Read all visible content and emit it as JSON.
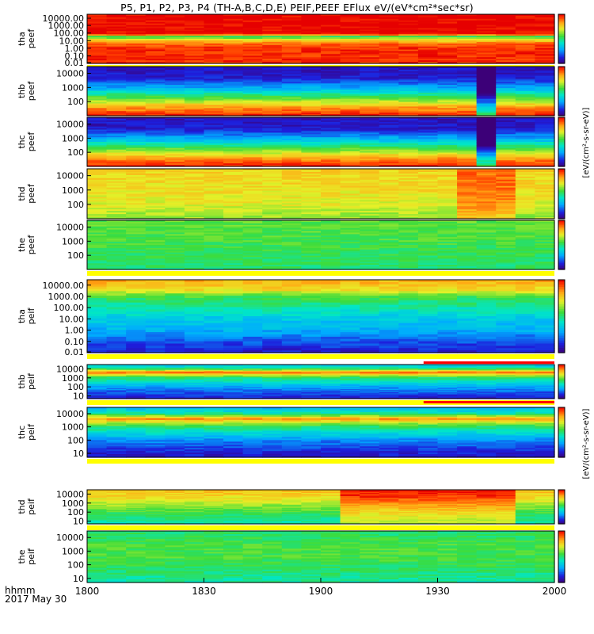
{
  "title": "P5, P1, P2, P3, P4 (TH-A,B,C,D,E) PEIF,PEEF EFlux eV/(eV*cm²*sec*sr)",
  "footer": {
    "time_label": "hhmm",
    "date_label": "2017 May 30"
  },
  "chart_data": [
    {
      "type": "heatmap",
      "probe_label": [
        "tha",
        "peef"
      ],
      "ytick_labels": [
        "10000.00",
        "1000.00",
        "100.00",
        "10.00",
        "1.00",
        "0.10",
        "0.01"
      ],
      "yrange": [
        0.01,
        30000
      ],
      "yscale": "log",
      "colorbar": {
        "ticks": [],
        "label": ""
      },
      "profile": [
        [
          0,
          0.95
        ],
        [
          0.5,
          0.9
        ],
        [
          0.8,
          0.82
        ],
        [
          1.1,
          0.72
        ],
        [
          1.3,
          0.62
        ],
        [
          1.6,
          0.52
        ],
        [
          1.8,
          1.0
        ],
        [
          3.2,
          1.0
        ],
        [
          4.0,
          1.0
        ]
      ],
      "xvar": [],
      "gap_below": 0.12
    },
    {
      "type": "heatmap",
      "probe_label": [
        "thb",
        "peef"
      ],
      "ytick_labels": [
        "10000",
        "1000",
        "100"
      ],
      "yrange": [
        10,
        30000
      ],
      "yscale": "log",
      "colorbar": {
        "ticks": [],
        "label": ""
      },
      "profile": [
        [
          1.0,
          0.98
        ],
        [
          1.3,
          0.9
        ],
        [
          1.6,
          0.82
        ],
        [
          1.9,
          0.7
        ],
        [
          2.3,
          0.55
        ],
        [
          2.8,
          0.35
        ],
        [
          3.3,
          0.2
        ],
        [
          3.7,
          0.1
        ],
        [
          4.5,
          0.08
        ]
      ],
      "xvar": [
        [
          0.83,
          0.86,
          -0.45
        ]
      ],
      "gap_below": 0
    },
    {
      "type": "heatmap",
      "probe_label": [
        "thc",
        "peef"
      ],
      "ytick_labels": [
        "10000",
        "1000",
        "100"
      ],
      "yrange": [
        10,
        30000
      ],
      "yscale": "log",
      "colorbar": {
        "ticks": [],
        "label": ""
      },
      "profile": [
        [
          1.0,
          0.98
        ],
        [
          1.3,
          0.9
        ],
        [
          1.6,
          0.82
        ],
        [
          1.9,
          0.7
        ],
        [
          2.3,
          0.55
        ],
        [
          2.8,
          0.35
        ],
        [
          3.3,
          0.2
        ],
        [
          3.7,
          0.1
        ],
        [
          4.5,
          0.08
        ]
      ],
      "xvar": [
        [
          0.83,
          0.86,
          -0.45
        ]
      ],
      "gap_below": 0
    },
    {
      "type": "heatmap",
      "probe_label": [
        "thd",
        "peef"
      ],
      "ytick_labels": [
        "10000",
        "1000",
        "100"
      ],
      "yrange": [
        10,
        30000
      ],
      "yscale": "log",
      "colorbar": {
        "ticks": [],
        "label": ""
      },
      "profile": [
        [
          1.0,
          0.62
        ],
        [
          2.0,
          0.7
        ],
        [
          3.0,
          0.73
        ],
        [
          4.5,
          0.75
        ]
      ],
      "xvar": [
        [
          0.78,
          0.92,
          0.14
        ]
      ],
      "gap_below": 0
    },
    {
      "type": "heatmap",
      "probe_label": [
        "the",
        "peef"
      ],
      "ytick_labels": [
        "10000",
        "1000",
        "100"
      ],
      "yrange": [
        10,
        30000
      ],
      "yscale": "log",
      "colorbar": {
        "ticks": [],
        "label": ""
      },
      "profile": [
        [
          1.0,
          0.5
        ],
        [
          2.0,
          0.52
        ],
        [
          3.0,
          0.55
        ],
        [
          4.5,
          0.58
        ]
      ],
      "xvar": [],
      "gap_below": 0.12
    },
    {
      "type": "heatmap",
      "probe_label": [
        "tha",
        "peif"
      ],
      "ytick_labels": [
        "10000.00",
        "1000.00",
        "100.00",
        "10.00",
        "1.00",
        "0.10",
        "0.01"
      ],
      "yrange": [
        0.01,
        30000
      ],
      "yscale": "log",
      "colorbar": {
        "ticks": [],
        "label": ""
      },
      "profile": [
        [
          -2,
          0.1
        ],
        [
          -1,
          0.18
        ],
        [
          0,
          0.3
        ],
        [
          1,
          0.35
        ],
        [
          2,
          0.45
        ],
        [
          3,
          0.55
        ],
        [
          3.5,
          0.72
        ],
        [
          4.3,
          0.8
        ]
      ],
      "xvar": [],
      "gap_below": 0.12
    },
    {
      "type": "heatmap",
      "probe_label": [
        "thb",
        "peif"
      ],
      "ytick_labels": [
        "10000",
        "1000",
        "100",
        "10"
      ],
      "yrange": [
        5,
        30000
      ],
      "yscale": "log",
      "colorbar": {
        "ticks": [],
        "label": ""
      },
      "profile": [
        [
          0.7,
          0.1
        ],
        [
          1.3,
          0.18
        ],
        [
          2.0,
          0.28
        ],
        [
          2.5,
          0.4
        ],
        [
          3.0,
          0.5
        ],
        [
          3.3,
          0.68
        ],
        [
          3.6,
          0.9
        ],
        [
          4.0,
          0.5
        ],
        [
          4.5,
          0.3
        ]
      ],
      "xvar": [],
      "gap_below": 0.12
    },
    {
      "type": "heatmap",
      "probe_label": [
        "thc",
        "peif"
      ],
      "ytick_labels": [
        "10000",
        "1000",
        "100",
        "10"
      ],
      "yrange": [
        5,
        30000
      ],
      "yscale": "log",
      "colorbar": {
        "ticks": [],
        "label": ""
      },
      "profile": [
        [
          0.7,
          0.08
        ],
        [
          1.3,
          0.15
        ],
        [
          2.0,
          0.25
        ],
        [
          2.5,
          0.38
        ],
        [
          3.0,
          0.5
        ],
        [
          3.3,
          0.65
        ],
        [
          3.6,
          0.85
        ],
        [
          4.0,
          0.45
        ],
        [
          4.5,
          0.28
        ]
      ],
      "xvar": [],
      "gap_below": 0.12
    },
    {
      "type": "heatmap",
      "probe_label": [
        "thd",
        "peif"
      ],
      "ytick_labels": [
        "10000",
        "1000",
        "100",
        "10"
      ],
      "yrange": [
        5,
        30000
      ],
      "yscale": "log",
      "colorbar": {
        "ticks": [],
        "label": ""
      },
      "profile": [
        [
          0.7,
          0.45
        ],
        [
          1.5,
          0.5
        ],
        [
          2.5,
          0.6
        ],
        [
          3.5,
          0.72
        ],
        [
          4.3,
          0.78
        ]
      ],
      "xvar": [
        [
          0.55,
          0.9,
          0.2
        ]
      ],
      "gap_below": 0.12
    },
    {
      "type": "heatmap",
      "probe_label": [
        "the",
        "peif"
      ],
      "ytick_labels": [
        "10000",
        "1000",
        "100",
        "10"
      ],
      "yrange": [
        5,
        30000
      ],
      "yscale": "log",
      "colorbar": {
        "ticks": [],
        "label": ""
      },
      "profile": [
        [
          0.7,
          0.45
        ],
        [
          1.5,
          0.5
        ],
        [
          2.5,
          0.55
        ],
        [
          3.5,
          0.55
        ],
        [
          4.3,
          0.5
        ]
      ],
      "xvar": [],
      "gap_below": 0
    }
  ],
  "x_axis": {
    "tick_labels": [
      "1800",
      "1830",
      "1900",
      "1930",
      "2000"
    ],
    "tick_values_min": [
      0,
      30,
      60,
      90,
      120
    ]
  },
  "colorbar_label_1": "[eV/(cm²-s-sr-eV)]",
  "colorbar_label_2": "[eV/(cm²-s-sr-eV)]",
  "colors": {
    "bad_data_band": "#ffff00",
    "gap_line": "#ff0000"
  }
}
